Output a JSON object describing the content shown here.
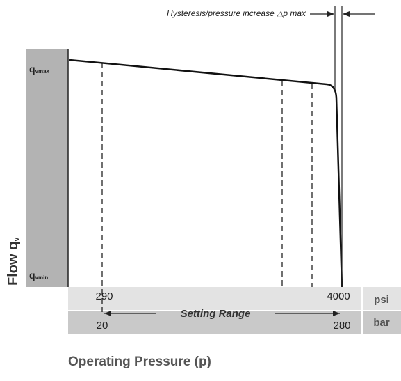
{
  "annotation": "Hysteresis/pressure increase △p max",
  "y_axis": {
    "label": {
      "base": "Flow q",
      "sub": "v"
    },
    "top": {
      "base": "q",
      "sub": "vmax"
    },
    "bottom": {
      "base": "q",
      "sub": "vmin"
    }
  },
  "scale": {
    "psi": {
      "unit": "psi",
      "low": "290",
      "high": "4000"
    },
    "bar": {
      "unit": "bar",
      "low": "20",
      "high": "280"
    },
    "range": "Setting Range"
  },
  "x_axis_label": "Operating Pressure (p)"
}
